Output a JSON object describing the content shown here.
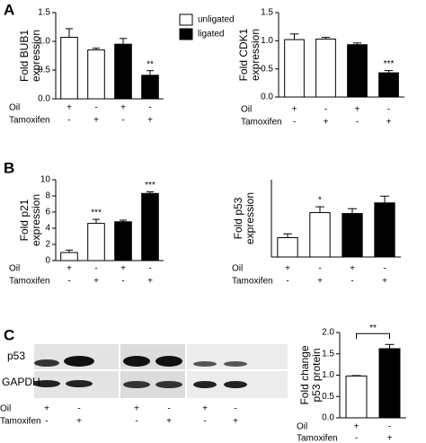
{
  "panel_labels": [
    "A",
    "B",
    "C"
  ],
  "chart_data": [
    {
      "type": "bar",
      "ylabel": [
        "Fold BUB1",
        "expression"
      ],
      "ylim": [
        0,
        1.5
      ],
      "yticks": [
        {
          "value": 0,
          "label": "0.0"
        },
        {
          "value": 0.5,
          "label": "0.5"
        },
        {
          "value": 1,
          "label": "1.0"
        },
        {
          "value": 1.5,
          "label": "1.5"
        }
      ],
      "values": [
        1.07,
        0.85,
        0.95,
        0.41
      ],
      "errors": [
        0.15,
        0.03,
        0.1,
        0.08
      ],
      "colors": [
        "#ffffff",
        "#ffffff",
        "#000000",
        "#000000"
      ],
      "annotations": [
        null,
        null,
        null,
        "**"
      ],
      "legend": [
        {
          "name": "unligated",
          "color": "#ffffff"
        },
        {
          "name": "ligated",
          "color": "#000000"
        }
      ],
      "conditions": [
        {
          "name": "Oil",
          "signs": [
            "+",
            "-",
            "+",
            "-"
          ]
        },
        {
          "name": "Tamoxifen",
          "signs": [
            "-",
            "+",
            "-",
            "+"
          ]
        }
      ]
    },
    {
      "type": "bar",
      "ylabel": [
        "Fold CDK1",
        "expression"
      ],
      "ylim": [
        0,
        1.5
      ],
      "yticks": [
        {
          "value": 0,
          "label": "0.0"
        },
        {
          "value": 0.5,
          "label": "0.5"
        },
        {
          "value": 1,
          "label": "1.0"
        },
        {
          "value": 1.5,
          "label": "1.5"
        }
      ],
      "values": [
        1.02,
        1.03,
        0.93,
        0.43
      ],
      "errors": [
        0.1,
        0.03,
        0.03,
        0.04
      ],
      "colors": [
        "#ffffff",
        "#ffffff",
        "#000000",
        "#000000"
      ],
      "annotations": [
        null,
        null,
        null,
        "***"
      ],
      "conditions": [
        {
          "name": "Oil",
          "signs": [
            "+",
            "-",
            "+",
            "-"
          ]
        },
        {
          "name": "Tamoxifen",
          "signs": [
            "-",
            "+",
            "-",
            "+"
          ]
        }
      ]
    },
    {
      "type": "bar",
      "ylabel": [
        "Fold p21",
        "expression"
      ],
      "ylim": [
        0,
        10
      ],
      "yticks": [
        0,
        2,
        4,
        6,
        8,
        10
      ],
      "values": [
        1.0,
        4.6,
        4.8,
        8.3
      ],
      "errors": [
        0.3,
        0.5,
        0.2,
        0.2
      ],
      "colors": [
        "#ffffff",
        "#ffffff",
        "#000000",
        "#000000"
      ],
      "annotations": [
        null,
        "***",
        null,
        "***"
      ],
      "conditions": [
        {
          "name": "Oil",
          "signs": [
            "+",
            "-",
            "+",
            "-"
          ]
        },
        {
          "name": "Tamoxifen",
          "signs": [
            "-",
            "+",
            "-",
            "+"
          ]
        }
      ]
    },
    {
      "type": "bar",
      "ylabel": [
        "Fold p53",
        "expression"
      ],
      "ylim": [
        0,
        4
      ],
      "values": [
        1.0,
        2.3,
        2.25,
        2.8
      ],
      "errors": [
        0.2,
        0.3,
        0.25,
        0.35
      ],
      "colors": [
        "#ffffff",
        "#ffffff",
        "#000000",
        "#000000"
      ],
      "annotations": [
        null,
        "*",
        null,
        null
      ],
      "conditions": [
        {
          "name": "Oil",
          "signs": [
            "+",
            "-",
            "+",
            "-"
          ]
        },
        {
          "name": "Tamoxifen",
          "signs": [
            "-",
            "+",
            "-",
            "+"
          ]
        }
      ]
    },
    {
      "type": "bar",
      "ylabel": [
        "Fold change",
        "p53 protein"
      ],
      "ylim": [
        0,
        2
      ],
      "yticks": [
        {
          "value": 0,
          "label": "0.0"
        },
        {
          "value": 0.5,
          "label": "0.5"
        },
        {
          "value": 1,
          "label": "1.0"
        },
        {
          "value": 1.5,
          "label": "1.5"
        },
        {
          "value": 2,
          "label": "2.0"
        }
      ],
      "values": [
        0.98,
        1.62
      ],
      "errors": [
        0.01,
        0.1
      ],
      "colors": [
        "#ffffff",
        "#000000"
      ],
      "bracket": "**",
      "conditions": [
        {
          "name": "Oil",
          "signs": [
            "+",
            "-"
          ]
        },
        {
          "name": "Tamoxifen",
          "signs": [
            "-",
            "+"
          ]
        }
      ]
    }
  ],
  "blot": {
    "rows": [
      "p53",
      "GAPDH"
    ],
    "conditions": [
      {
        "name": "Oil",
        "signs": [
          "+",
          "-",
          "+",
          "-",
          "+",
          "-"
        ]
      },
      {
        "name": "Tamoxifen",
        "signs": [
          "-",
          "+",
          "-",
          "+",
          "-",
          "+"
        ]
      }
    ]
  }
}
